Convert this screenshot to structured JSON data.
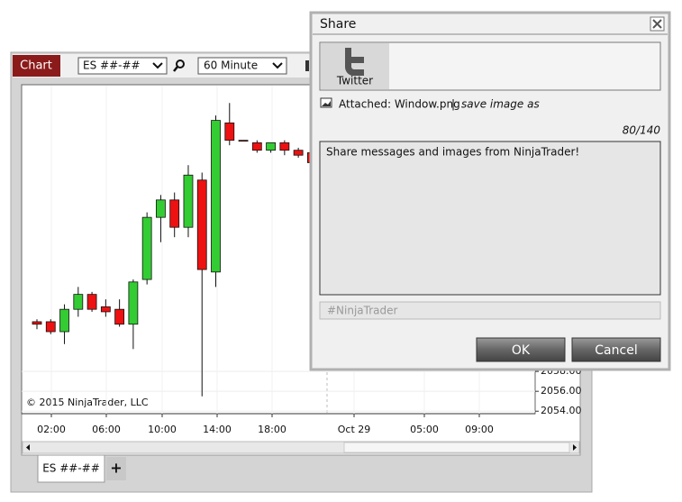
{
  "chart_window": {
    "chart_button": "Chart",
    "instrument": "ES ##-##",
    "interval": "60 Minute",
    "copyright": "© 2015 NinjaTrader, LLC",
    "tab": "ES ##-##",
    "add_tab": "+",
    "chart_data": {
      "type": "candlestick",
      "x_tick_labels": [
        "02:00",
        "06:00",
        "10:00",
        "14:00",
        "18:00",
        "Oct 29",
        "05:00",
        "09:00"
      ],
      "open": [
        2063.0,
        2063.0,
        2062.0,
        2064.25,
        2065.75,
        2064.5,
        2064.25,
        2062.75,
        2067.25,
        2073.5,
        2075.25,
        2072.5,
        2077.25,
        2068.0,
        2083.0,
        2081.25,
        2081.0,
        2080.25,
        2081.0,
        2080.25,
        2080.0
      ],
      "high": [
        2063.25,
        2063.25,
        2064.75,
        2066.5,
        2066.0,
        2065.25,
        2065.25,
        2067.25,
        2074.0,
        2075.75,
        2076.0,
        2078.75,
        2078.0,
        2083.75,
        2085.0,
        2081.25,
        2081.25,
        2081.0,
        2081.25,
        2080.5,
        2080.25
      ],
      "low": [
        2062.25,
        2061.75,
        2060.75,
        2063.5,
        2064.0,
        2063.5,
        2062.5,
        2060.25,
        2066.75,
        2071.0,
        2071.5,
        2071.5,
        2055.5,
        2066.5,
        2080.75,
        2081.25,
        2080.0,
        2080.0,
        2079.75,
        2079.5,
        2078.75
      ],
      "close": [
        2062.75,
        2062.0,
        2064.25,
        2065.75,
        2064.25,
        2064.0,
        2062.75,
        2067.0,
        2073.5,
        2075.25,
        2072.5,
        2077.75,
        2068.25,
        2083.25,
        2081.25,
        2081.25,
        2080.25,
        2081.0,
        2080.25,
        2079.75,
        2079.0
      ],
      "up_color": "#33cc33",
      "down_color": "#ee1111",
      "ylim": [
        2053.75,
        2086.75
      ],
      "yticks": [
        {
          "value": 2054,
          "label": "2054.00"
        },
        {
          "value": 2056,
          "label": "2056.00"
        },
        {
          "value": 2058,
          "label": "2058.00"
        }
      ],
      "grid": true
    }
  },
  "share_dialog": {
    "title": "Share",
    "service": "Twitter",
    "attachment_label": "Attached: Window.png",
    "separator": "|",
    "save_link": "save image as",
    "char_count": "80/140",
    "message": "Share messages and images from NinjaTrader!",
    "hashtag_placeholder": "#NinjaTrader",
    "ok": "OK",
    "cancel": "Cancel"
  }
}
